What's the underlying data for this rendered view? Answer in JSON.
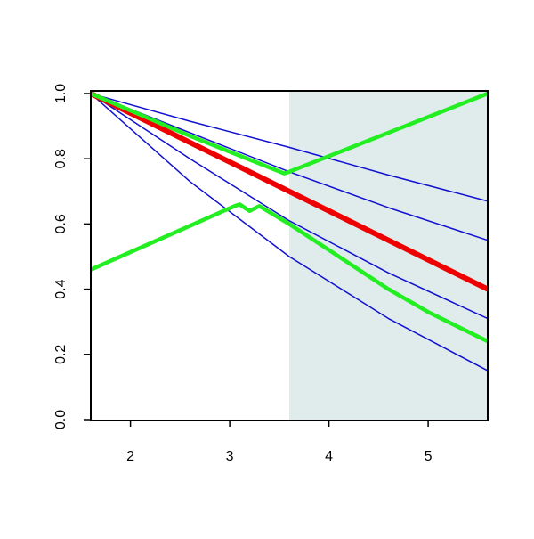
{
  "chart_data": {
    "type": "line",
    "xlim": [
      1.6,
      5.6
    ],
    "ylim": [
      0,
      1
    ],
    "xticks": [
      2,
      3,
      4,
      5
    ],
    "yticks": [
      {
        "value": 0,
        "label": "0.0"
      },
      0.2,
      0.4,
      0.6,
      0.8,
      {
        "value": 1,
        "label": "1.0"
      }
    ],
    "shaded_xrange": [
      3.6,
      5.6
    ],
    "shade_color": "#e0ecec",
    "series": [
      {
        "color": "#1010d0",
        "line_width": 1.5,
        "x": [
          1.6,
          2.6,
          3.6,
          4.6,
          5.6
        ],
        "values": [
          1.0,
          0.73,
          0.5,
          0.31,
          0.15
        ]
      },
      {
        "color": "#1010d0",
        "line_width": 1.5,
        "x": [
          1.6,
          2.6,
          3.6,
          4.6,
          5.6
        ],
        "values": [
          1.0,
          0.8,
          0.61,
          0.45,
          0.31
        ]
      },
      {
        "color": "#1010d0",
        "line_width": 1.5,
        "x": [
          1.6,
          2.6,
          3.6,
          4.6,
          5.6
        ],
        "values": [
          1.0,
          0.88,
          0.76,
          0.65,
          0.55
        ]
      },
      {
        "color": "#1010d0",
        "line_width": 1.5,
        "x": [
          1.6,
          2.6,
          3.6,
          4.6,
          5.6
        ],
        "values": [
          1.0,
          0.915,
          0.835,
          0.75,
          0.67
        ]
      },
      {
        "color": "#ee0000",
        "line_width": 6,
        "x": [
          1.6,
          2.6,
          3.6,
          4.6,
          5.6
        ],
        "values": [
          1.0,
          0.85,
          0.7,
          0.55,
          0.4
        ]
      },
      {
        "color": "#22ee22",
        "line_width": 4.5,
        "x": [
          1.6,
          2.6,
          3.55,
          3.6,
          4.6,
          5.6
        ],
        "values": [
          1.0,
          0.87,
          0.755,
          0.76,
          0.88,
          1.0
        ]
      },
      {
        "color": "#22ee22",
        "line_width": 4.5,
        "x": [
          1.6,
          3.05,
          3.1,
          3.2,
          3.3,
          3.6,
          4.0,
          4.6,
          5.0,
          5.6
        ],
        "values": [
          0.46,
          0.655,
          0.66,
          0.64,
          0.655,
          0.6,
          0.52,
          0.4,
          0.33,
          0.24
        ]
      }
    ]
  }
}
